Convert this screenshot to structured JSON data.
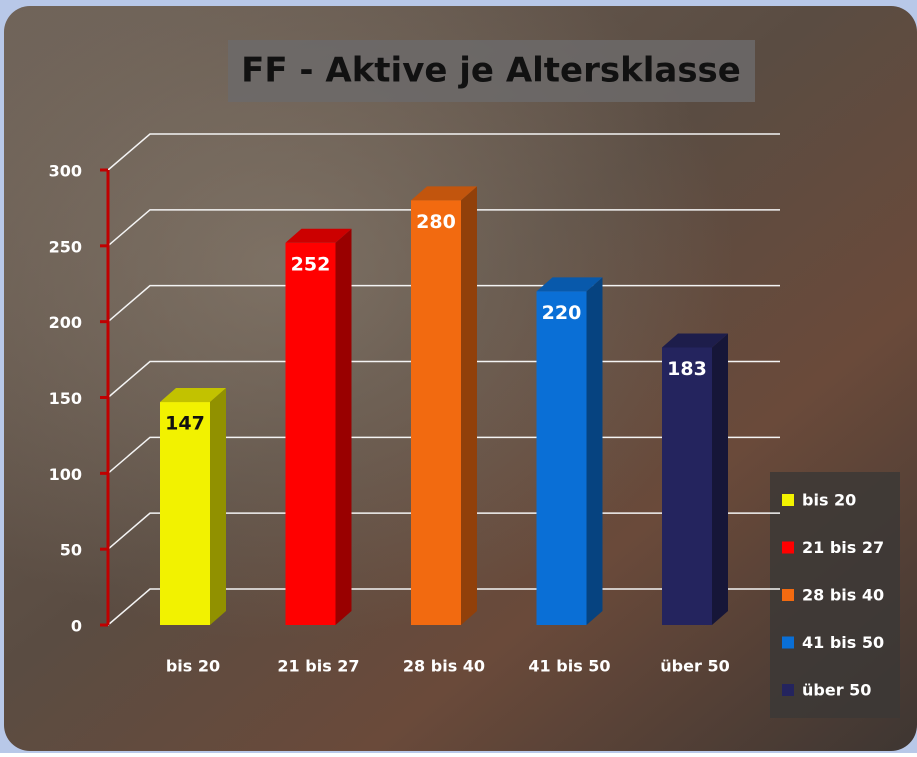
{
  "chart_data": {
    "type": "bar3d",
    "title": "FF - Aktive  je Altersklasse",
    "categories": [
      "bis 20",
      "21 bis 27",
      "28 bis 40",
      "41 bis 50",
      "über 50"
    ],
    "values": [
      147,
      252,
      280,
      220,
      183
    ],
    "colors": [
      "#f2f200",
      "#ff0000",
      "#f26a10",
      "#0a6fd6",
      "#24245e"
    ],
    "ylim": [
      0,
      300
    ],
    "yticks": [
      0,
      50,
      100,
      150,
      200,
      250,
      300
    ],
    "grid": true,
    "legend": "right"
  }
}
